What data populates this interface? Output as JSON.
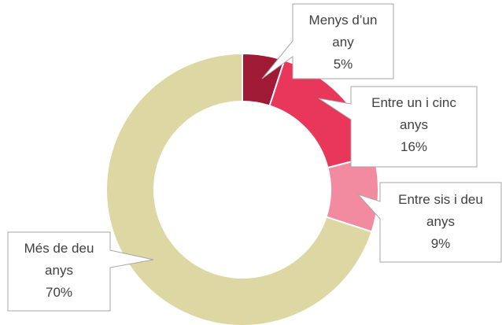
{
  "chart_data": {
    "type": "donut",
    "categories": [
      "Menys d’un any",
      "Entre un i cinc anys",
      "Entre sis i deu anys",
      "Més de deu anys"
    ],
    "values": [
      5,
      16,
      9,
      70
    ],
    "value_labels": [
      "5%",
      "16%",
      "9%",
      "70%"
    ],
    "colors": [
      "#9e1a35",
      "#e8375a",
      "#f28ba0",
      "#ddd8a3"
    ]
  }
}
